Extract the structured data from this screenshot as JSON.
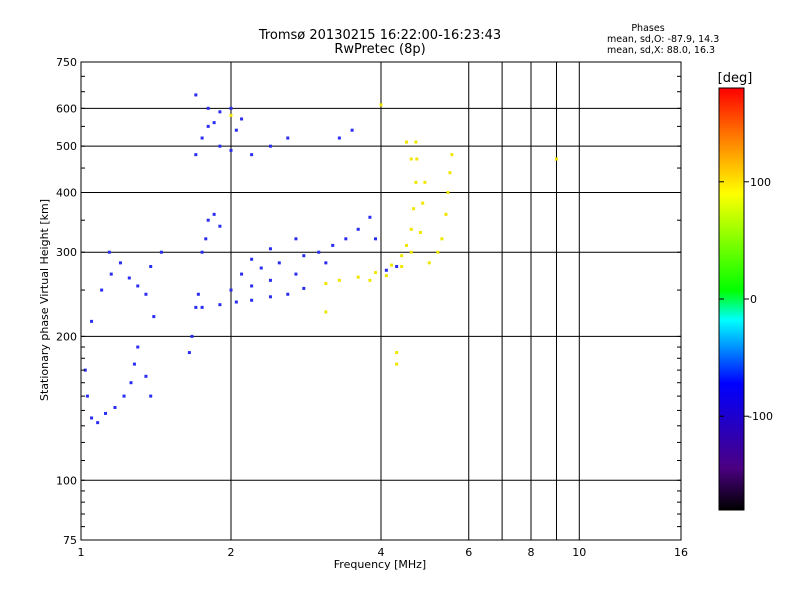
{
  "chart_data": {
    "type": "scatter",
    "title": "Tromsø 20130215 16:22:00-16:23:43",
    "subtitle": "RwPretec (8p)",
    "xlabel": "Frequency [MHz]",
    "ylabel": "Stationary phase Virtual Height [km]",
    "x_scale": "log",
    "y_scale": "log",
    "xlim": [
      1,
      16
    ],
    "ylim": [
      75,
      750
    ],
    "x_ticks": [
      1,
      2,
      4,
      6,
      8,
      10,
      16
    ],
    "x_tick_labels": [
      "1",
      "2",
      "4",
      "6",
      "8",
      "10",
      "16"
    ],
    "x_minor_ticks": [
      7,
      9
    ],
    "y_ticks": [
      75,
      100,
      200,
      300,
      400,
      500,
      600,
      750
    ],
    "y_tick_labels": [
      "75",
      "100",
      "200",
      "300",
      "400",
      "500",
      "600",
      "750"
    ],
    "grid": true,
    "phases_box": {
      "heading": "Phases",
      "line1": "mean, sd,O: -87.9, 14.3",
      "line2": "mean, sd,X:  88.0, 16.3"
    },
    "colorbar": {
      "label": "[deg]",
      "range": [
        -180,
        180
      ],
      "ticks": [
        100,
        0,
        -100
      ],
      "tick_labels": [
        "100",
        "0",
        "-100"
      ]
    },
    "colors": {
      "O_mode": "#2a2cf0",
      "X_mode": "#f0e600"
    },
    "series": [
      {
        "mode": "O",
        "points": [
          [
            1.02,
            170
          ],
          [
            1.03,
            150
          ],
          [
            1.05,
            135
          ],
          [
            1.08,
            132
          ],
          [
            1.12,
            138
          ],
          [
            1.17,
            142
          ],
          [
            1.22,
            150
          ],
          [
            1.26,
            160
          ],
          [
            1.28,
            175
          ],
          [
            1.3,
            190
          ],
          [
            1.35,
            165
          ],
          [
            1.38,
            150
          ],
          [
            1.05,
            215
          ],
          [
            1.1,
            250
          ],
          [
            1.14,
            300
          ],
          [
            1.15,
            270
          ],
          [
            1.2,
            285
          ],
          [
            1.25,
            265
          ],
          [
            1.3,
            255
          ],
          [
            1.35,
            245
          ],
          [
            1.38,
            280
          ],
          [
            1.45,
            300
          ],
          [
            1.4,
            220
          ],
          [
            1.65,
            185
          ],
          [
            1.67,
            200
          ],
          [
            1.7,
            230
          ],
          [
            1.72,
            245
          ],
          [
            1.75,
            300
          ],
          [
            1.78,
            320
          ],
          [
            1.8,
            350
          ],
          [
            1.85,
            360
          ],
          [
            1.9,
            340
          ],
          [
            1.7,
            480
          ],
          [
            1.75,
            520
          ],
          [
            1.8,
            550
          ],
          [
            1.85,
            560
          ],
          [
            1.9,
            500
          ],
          [
            2.0,
            490
          ],
          [
            2.05,
            540
          ],
          [
            2.1,
            570
          ],
          [
            2.2,
            480
          ],
          [
            2.4,
            500
          ],
          [
            2.6,
            520
          ],
          [
            1.7,
            640
          ],
          [
            1.8,
            600
          ],
          [
            1.9,
            590
          ],
          [
            2.0,
            600
          ],
          [
            1.75,
            230
          ],
          [
            1.9,
            233
          ],
          [
            2.05,
            236
          ],
          [
            2.2,
            238
          ],
          [
            2.4,
            242
          ],
          [
            2.6,
            245
          ],
          [
            2.8,
            252
          ],
          [
            2.0,
            250
          ],
          [
            2.2,
            255
          ],
          [
            2.4,
            262
          ],
          [
            2.7,
            270
          ],
          [
            2.1,
            270
          ],
          [
            2.3,
            278
          ],
          [
            2.5,
            285
          ],
          [
            2.8,
            295
          ],
          [
            2.2,
            290
          ],
          [
            2.4,
            305
          ],
          [
            2.7,
            320
          ],
          [
            3.0,
            300
          ],
          [
            3.2,
            310
          ],
          [
            3.4,
            320
          ],
          [
            3.6,
            335
          ],
          [
            3.8,
            355
          ],
          [
            3.3,
            520
          ],
          [
            3.5,
            540
          ],
          [
            3.9,
            320
          ],
          [
            4.1,
            275
          ],
          [
            4.3,
            280
          ],
          [
            3.1,
            285
          ]
        ]
      },
      {
        "mode": "X",
        "points": [
          [
            3.1,
            258
          ],
          [
            3.3,
            262
          ],
          [
            3.6,
            266
          ],
          [
            3.9,
            272
          ],
          [
            4.2,
            282
          ],
          [
            4.4,
            295
          ],
          [
            4.5,
            310
          ],
          [
            4.6,
            335
          ],
          [
            4.65,
            370
          ],
          [
            4.7,
            420
          ],
          [
            4.72,
            470
          ],
          [
            4.7,
            510
          ],
          [
            3.8,
            262
          ],
          [
            4.1,
            268
          ],
          [
            4.4,
            280
          ],
          [
            4.6,
            300
          ],
          [
            4.8,
            330
          ],
          [
            4.85,
            380
          ],
          [
            4.9,
            420
          ],
          [
            5.0,
            285
          ],
          [
            5.2,
            300
          ],
          [
            5.3,
            320
          ],
          [
            5.4,
            360
          ],
          [
            5.45,
            400
          ],
          [
            5.5,
            440
          ],
          [
            5.55,
            480
          ],
          [
            4.5,
            510
          ],
          [
            4.6,
            470
          ],
          [
            4.3,
            175
          ],
          [
            4.3,
            185
          ],
          [
            3.1,
            225
          ],
          [
            4.0,
            610
          ],
          [
            2.0,
            580
          ],
          [
            9.0,
            470
          ]
        ]
      }
    ]
  }
}
